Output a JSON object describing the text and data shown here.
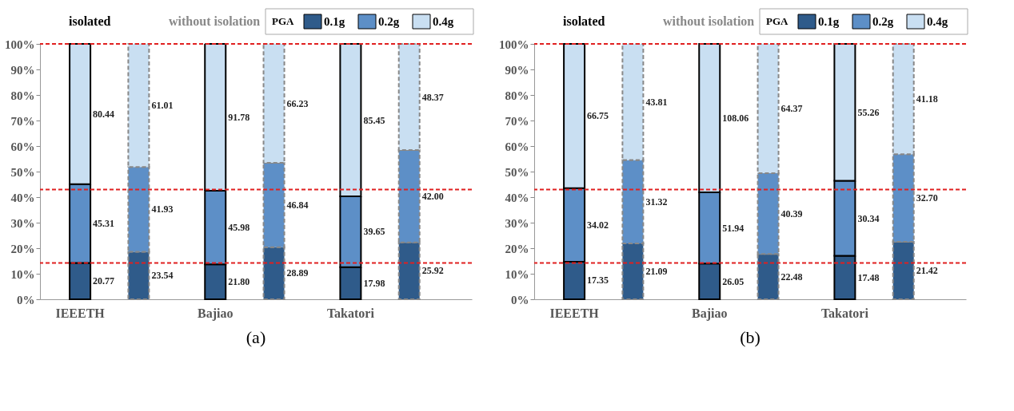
{
  "chart_data": [
    {
      "type": "bar",
      "stacked": true,
      "legend": "top right",
      "legend_title": "PGA",
      "categories": [
        "IEEETH",
        null,
        "Bajiao",
        null,
        "Takatori",
        null
      ],
      "ylim": [
        0,
        100
      ],
      "yticks": [
        {
          "value": 0,
          "label": "0%"
        },
        {
          "value": 10,
          "label": "10%"
        },
        {
          "value": 20,
          "label": "20%"
        },
        {
          "value": 30,
          "label": "30%"
        },
        {
          "value": 40,
          "label": "40%"
        },
        {
          "value": 50,
          "label": "50%"
        },
        {
          "value": 60,
          "label": "60%"
        },
        {
          "value": 70,
          "label": "70%"
        },
        {
          "value": 80,
          "label": "80%"
        },
        {
          "value": 90,
          "label": "90%"
        },
        {
          "value": 100,
          "label": "100%"
        }
      ],
      "series": [
        {
          "name": "0.1g",
          "color": "#2f5b8a",
          "line_style": "solid",
          "values": [
            14.2,
            null,
            13.7,
            null,
            12.6,
            null
          ]
        },
        {
          "color": "#2f5b8a",
          "line_style": "dashed",
          "values": [
            null,
            18.6,
            null,
            20.4,
            null,
            22.3
          ]
        },
        {
          "name": "0.2g",
          "color": "#5d8fc7",
          "line_style": "solid",
          "values": [
            30.9,
            null,
            28.8,
            null,
            27.7,
            null
          ]
        },
        {
          "color": "#5d8fc7",
          "line_style": "dashed",
          "values": [
            null,
            33.2,
            null,
            33.0,
            null,
            36.1
          ]
        },
        {
          "name": "0.4g",
          "color": "#c9dff2",
          "line_style": "solid",
          "values": [
            54.9,
            null,
            57.5,
            null,
            59.7,
            null
          ]
        },
        {
          "color": "#c9dff2",
          "line_style": "dashed",
          "values": [
            null,
            48.2,
            null,
            46.6,
            null,
            41.6
          ]
        }
      ],
      "ref_lines": [
        {
          "axis": "y",
          "value": 100,
          "color": "#e02020",
          "line_style": "dashed"
        },
        {
          "axis": "y",
          "value": 43,
          "color": "#e02020",
          "line_style": "dashed"
        },
        {
          "axis": "y",
          "value": 14.2,
          "color": "#e02020",
          "line_style": "dashed"
        }
      ],
      "annotations": [
        "isolated",
        "without isolation",
        "(a)",
        "20.77",
        "45.31",
        "80.44",
        "23.54",
        "41.93",
        "61.01",
        "21.80",
        "45.98",
        "91.78",
        "28.89",
        "46.84",
        "66.23",
        "17.98",
        "39.65",
        "85.45",
        "25.92",
        "42.00",
        "48.37"
      ]
    },
    {
      "type": "bar",
      "stacked": true,
      "legend": "top right",
      "legend_title": "PGA",
      "categories": [
        "IEEETH",
        null,
        "Bajiao",
        null,
        "Takatori",
        null
      ],
      "ylim": [
        0,
        100
      ],
      "yticks": [
        {
          "value": 0,
          "label": "0%"
        },
        {
          "value": 10,
          "label": "10%"
        },
        {
          "value": 20,
          "label": "20%"
        },
        {
          "value": 30,
          "label": "30%"
        },
        {
          "value": 40,
          "label": "40%"
        },
        {
          "value": 50,
          "label": "50%"
        },
        {
          "value": 60,
          "label": "60%"
        },
        {
          "value": 70,
          "label": "70%"
        },
        {
          "value": 80,
          "label": "80%"
        },
        {
          "value": 90,
          "label": "90%"
        },
        {
          "value": 100,
          "label": "100%"
        }
      ],
      "series": [
        {
          "name": "0.1g",
          "color": "#2f5b8a",
          "line_style": "solid",
          "values": [
            14.7,
            null,
            14.0,
            null,
            17.0,
            null
          ]
        },
        {
          "color": "#2f5b8a",
          "line_style": "dashed",
          "values": [
            null,
            21.9,
            null,
            17.7,
            null,
            22.5
          ]
        },
        {
          "name": "0.2g",
          "color": "#5d8fc7",
          "line_style": "solid",
          "values": [
            28.8,
            null,
            27.9,
            null,
            29.4,
            null
          ]
        },
        {
          "color": "#5d8fc7",
          "line_style": "dashed",
          "values": [
            null,
            32.6,
            null,
            31.7,
            null,
            34.3
          ]
        },
        {
          "name": "0.4g",
          "color": "#c9dff2",
          "line_style": "solid",
          "values": [
            56.5,
            null,
            58.1,
            null,
            53.6,
            null
          ]
        },
        {
          "color": "#c9dff2",
          "line_style": "dashed",
          "values": [
            null,
            45.5,
            null,
            50.6,
            null,
            43.2
          ]
        }
      ],
      "ref_lines": [
        {
          "axis": "y",
          "value": 100,
          "color": "#e02020",
          "line_style": "dashed"
        },
        {
          "axis": "y",
          "value": 43,
          "color": "#e02020",
          "line_style": "dashed"
        },
        {
          "axis": "y",
          "value": 14.2,
          "color": "#e02020",
          "line_style": "dashed"
        }
      ],
      "annotations": [
        "isolated",
        "without isolation",
        "(b)",
        "17.35",
        "34.02",
        "66.75",
        "21.09",
        "31.32",
        "43.81",
        "26.05",
        "51.94",
        "108.06",
        "22.48",
        "40.39",
        "64.37",
        "17.48",
        "30.34",
        "55.26",
        "21.42",
        "32.70",
        "41.18"
      ]
    }
  ]
}
